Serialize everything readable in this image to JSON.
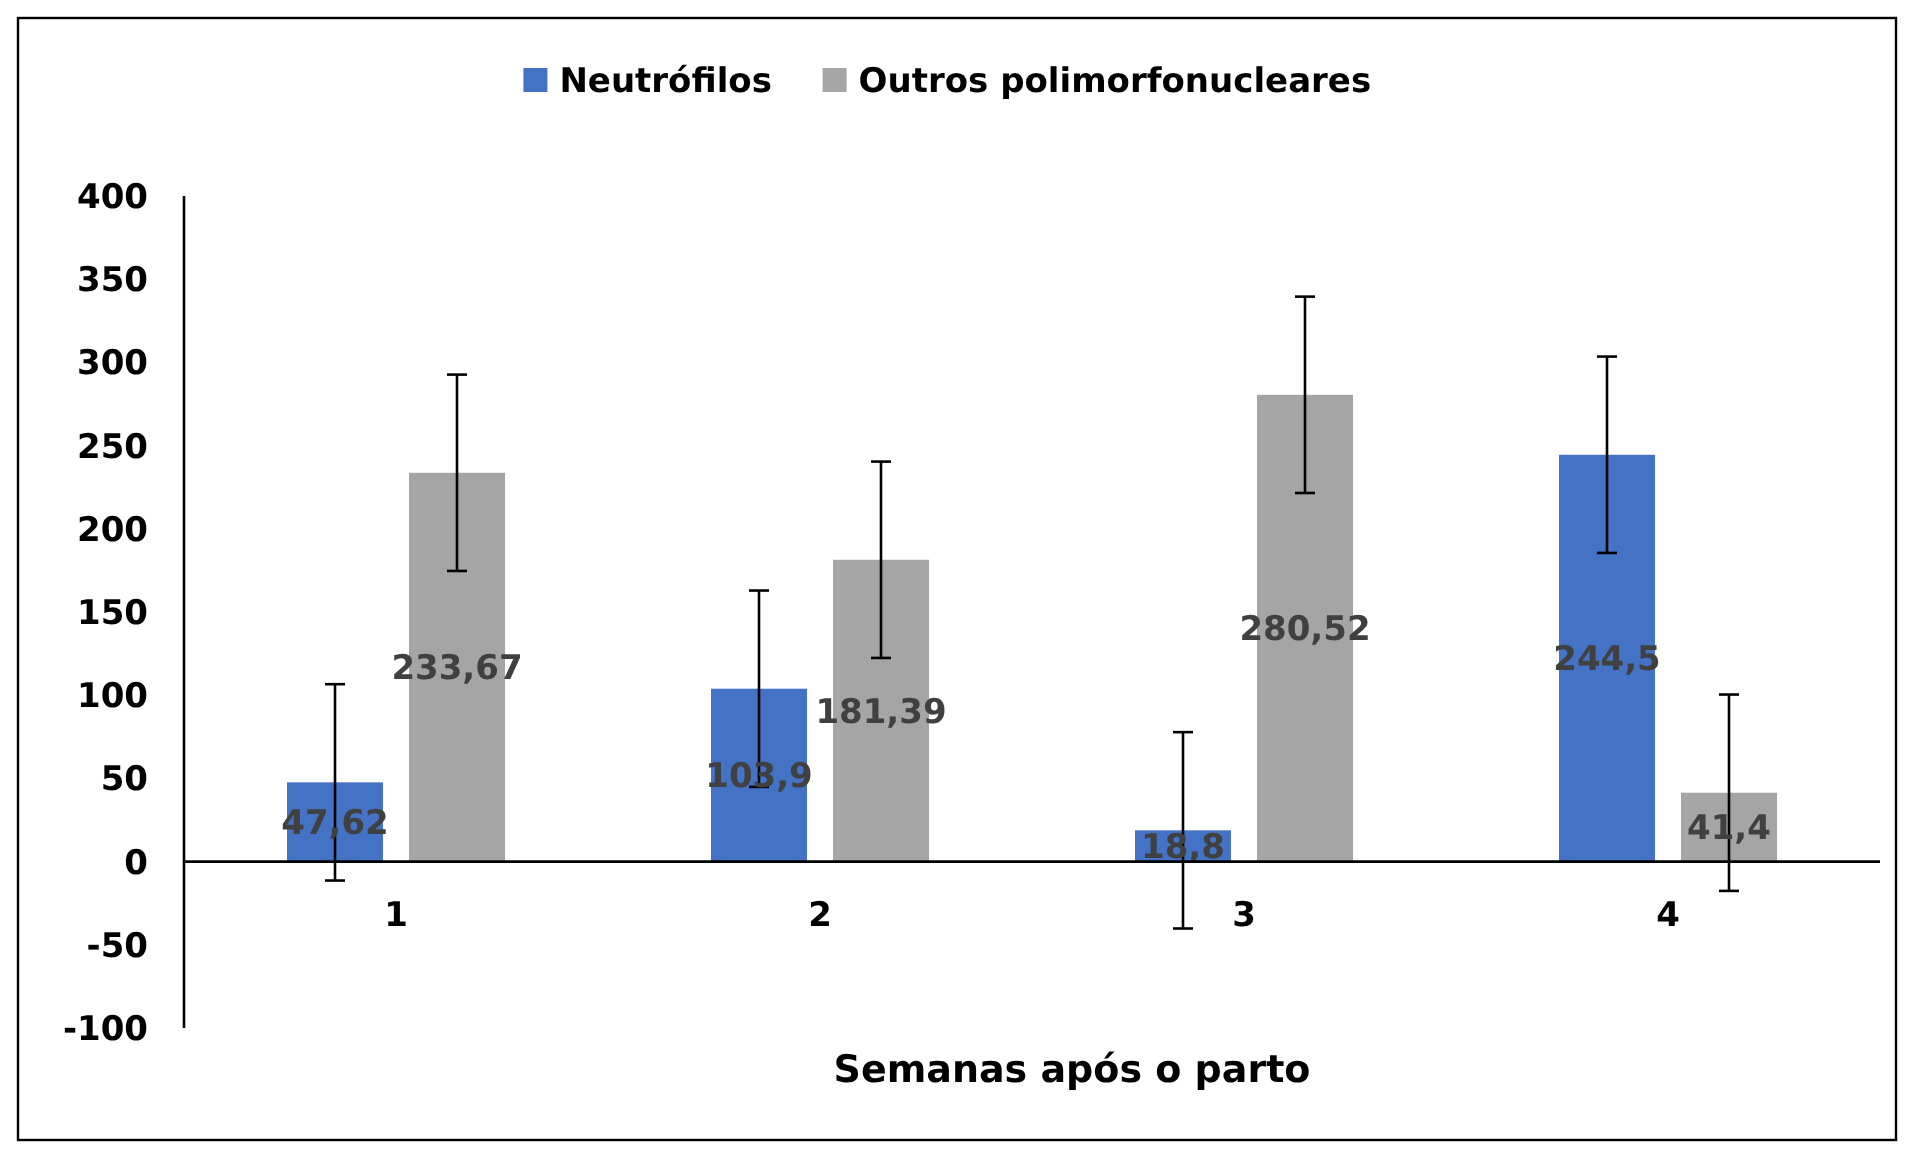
{
  "chart_data": {
    "type": "bar",
    "categories": [
      "1",
      "2",
      "3",
      "4"
    ],
    "series": [
      {
        "name": "Neutrófilos",
        "color": "#4472c4",
        "values": [
          47.62,
          103.9,
          18.8,
          244.5
        ],
        "errors": [
          59,
          59,
          59,
          59
        ],
        "value_labels": [
          "47,62",
          "103,9",
          "18,8",
          "244,5"
        ]
      },
      {
        "name": "Outros polimorfonucleares",
        "color": "#a5a5a5",
        "values": [
          233.67,
          181.39,
          280.52,
          41.4
        ],
        "errors": [
          59,
          59,
          59,
          59
        ],
        "value_labels": [
          "233,67",
          "181,39",
          "280,52",
          "41,4"
        ]
      }
    ],
    "xlabel": "Semanas após o parto",
    "ylim": [
      -100,
      400
    ],
    "yticks": [
      -100,
      -50,
      0,
      50,
      100,
      150,
      200,
      250,
      300,
      350,
      400
    ],
    "legend": "top",
    "grid": false
  }
}
